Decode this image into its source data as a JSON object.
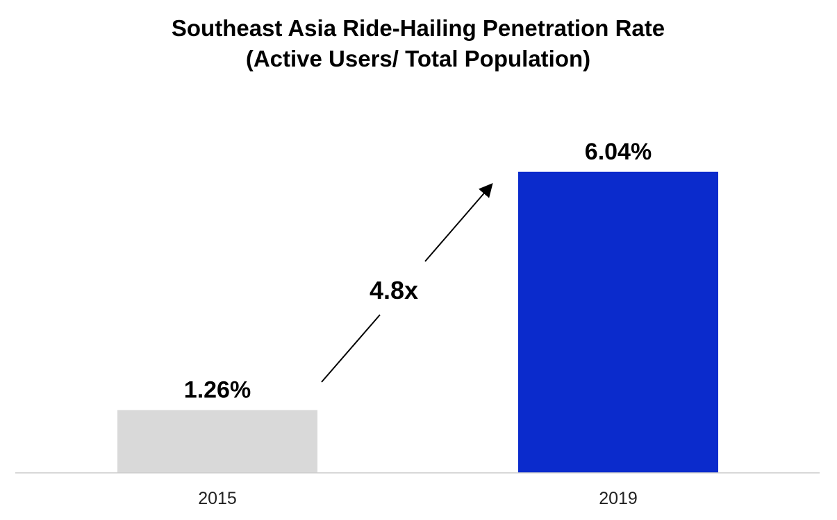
{
  "chart_data": {
    "type": "bar",
    "title": "Southeast Asia Ride-Hailing Penetration Rate",
    "subtitle": "(Active Users/ Total Population)",
    "categories": [
      "2015",
      "2019"
    ],
    "values": [
      1.26,
      6.04
    ],
    "data_labels": [
      "1.26%",
      "6.04%"
    ],
    "unit": "%",
    "xlabel": "",
    "ylabel": "",
    "ylim": [
      0,
      7.4
    ],
    "grid": false,
    "legend": "none",
    "bar_colors": [
      "#d9d9d9",
      "#0b2bcc"
    ],
    "axis_color": "#cccccc",
    "annotation": {
      "text": "4.8x",
      "from_category": "2015",
      "to_category": "2019"
    }
  }
}
